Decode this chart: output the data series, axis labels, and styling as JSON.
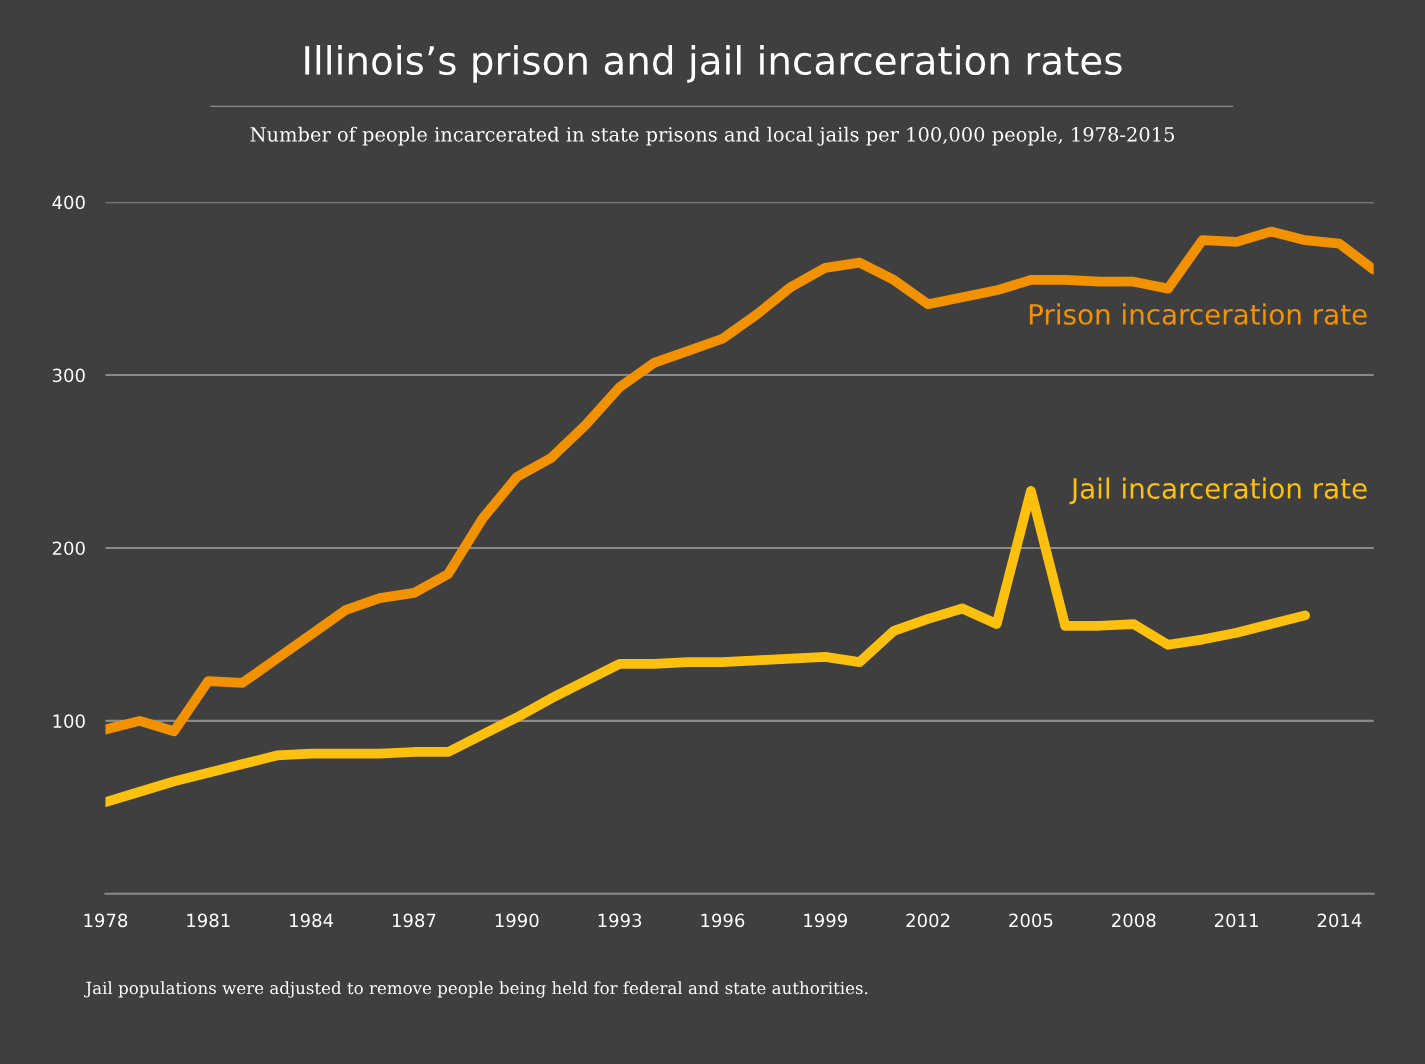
{
  "chart_data": {
    "type": "line",
    "title": "Illinois’s prison and jail incarceration rates",
    "subtitle": "Number of people incarcerated in state prisons and local jails per 100,000 people, 1978-2015",
    "x": [
      1978,
      1979,
      1980,
      1981,
      1982,
      1983,
      1984,
      1985,
      1986,
      1987,
      1988,
      1989,
      1990,
      1991,
      1992,
      1993,
      1994,
      1995,
      1996,
      1997,
      1998,
      1999,
      2000,
      2001,
      2002,
      2003,
      2004,
      2005,
      2006,
      2007,
      2008,
      2009,
      2010,
      2011,
      2012,
      2013,
      2014,
      2015
    ],
    "series": [
      {
        "name": "Prison incarceration rate",
        "color": "#f39200",
        "values": [
          95,
          100,
          94,
          123,
          122,
          136,
          150,
          164,
          171,
          174,
          185,
          217,
          241,
          252,
          271,
          293,
          307,
          314,
          321,
          335,
          351,
          362,
          365,
          355,
          341,
          345,
          349,
          355,
          355,
          354,
          354,
          350,
          378,
          377,
          383,
          378,
          376,
          361
        ]
      },
      {
        "name": "Jail incarceration rate",
        "color": "#fcc00f",
        "values": [
          53,
          59,
          65,
          70,
          75,
          80,
          81,
          81,
          81,
          82,
          82,
          92,
          102,
          113,
          123,
          133,
          133,
          134,
          134,
          135,
          136,
          137,
          134,
          152,
          159,
          165,
          156,
          233,
          155,
          155,
          156,
          144,
          147,
          151,
          156,
          161,
          null,
          null
        ]
      }
    ],
    "xlim": [
      1978,
      2015
    ],
    "xticks": [
      1978,
      1981,
      1984,
      1987,
      1990,
      1993,
      1996,
      1999,
      2002,
      2005,
      2008,
      2011,
      2014
    ],
    "ylim": [
      0,
      400
    ],
    "yticks": [
      100,
      200,
      300,
      400
    ],
    "grid": "y",
    "marker": "none",
    "line_style": "solid",
    "legend": false,
    "annotations": [
      "Jail populations were adjusted to remove people being held for federal and state authorities."
    ]
  }
}
